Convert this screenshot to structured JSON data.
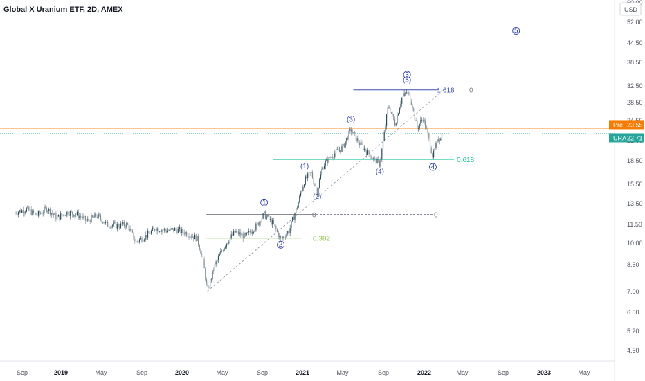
{
  "title": "Global X Uranium ETF, 2D, AMEX",
  "corner_label": "USD",
  "chart_data": {
    "type": "candlestick",
    "title": "Global X Uranium ETF, 2D, AMEX",
    "y_scale": "log",
    "y_ticks": [
      "60.00",
      "52.00",
      "44.50",
      "38.50",
      "32.50",
      "28.50",
      "24.50",
      "21.50",
      "18.50",
      "15.50",
      "13.50",
      "11.50",
      "10.00",
      "8.50",
      "7.00",
      "6.00",
      "5.20",
      "4.50"
    ],
    "x_ticks": [
      {
        "label": "Sep",
        "bold": false
      },
      {
        "label": "2019",
        "bold": true
      },
      {
        "label": "May",
        "bold": false
      },
      {
        "label": "Sep",
        "bold": false
      },
      {
        "label": "2020",
        "bold": true
      },
      {
        "label": "May",
        "bold": false
      },
      {
        "label": "Sep",
        "bold": false
      },
      {
        "label": "2021",
        "bold": true
      },
      {
        "label": "May",
        "bold": false
      },
      {
        "label": "Sep",
        "bold": false
      },
      {
        "label": "2022",
        "bold": true
      },
      {
        "label": "May",
        "bold": false
      },
      {
        "label": "Sep",
        "bold": false
      },
      {
        "label": "2023",
        "bold": true
      },
      {
        "label": "May",
        "bold": false
      }
    ],
    "price_path": [
      [
        "2018-08-15",
        12.6
      ],
      [
        "2018-09-20",
        12.9
      ],
      [
        "2018-10-20",
        12.3
      ],
      [
        "2018-11-20",
        13.0
      ],
      [
        "2018-12-20",
        12.1
      ],
      [
        "2019-01-20",
        12.6
      ],
      [
        "2019-02-20",
        12.4
      ],
      [
        "2019-03-20",
        11.8
      ],
      [
        "2019-04-20",
        12.3
      ],
      [
        "2019-05-20",
        11.5
      ],
      [
        "2019-06-20",
        11.4
      ],
      [
        "2019-07-20",
        11.5
      ],
      [
        "2019-08-15",
        10.1
      ],
      [
        "2019-09-15",
        10.6
      ],
      [
        "2019-10-15",
        11.2
      ],
      [
        "2019-11-15",
        11.0
      ],
      [
        "2019-12-15",
        11.1
      ],
      [
        "2020-01-15",
        10.8
      ],
      [
        "2020-02-15",
        10.4
      ],
      [
        "2020-03-01",
        9.2
      ],
      [
        "2020-03-18",
        7.0
      ],
      [
        "2020-04-10",
        8.5
      ],
      [
        "2020-05-10",
        9.9
      ],
      [
        "2020-06-10",
        10.9
      ],
      [
        "2020-07-10",
        10.5
      ],
      [
        "2020-08-10",
        11.3
      ],
      [
        "2020-09-05",
        12.4
      ],
      [
        "2020-10-01",
        11.6
      ],
      [
        "2020-10-25",
        10.3
      ],
      [
        "2020-11-20",
        11.0
      ],
      [
        "2020-12-15",
        13.3
      ],
      [
        "2021-01-05",
        16.0
      ],
      [
        "2021-01-25",
        16.9
      ],
      [
        "2021-02-12",
        14.6
      ],
      [
        "2021-03-01",
        17.8
      ],
      [
        "2021-04-01",
        19.4
      ],
      [
        "2021-05-01",
        20.5
      ],
      [
        "2021-05-25",
        23.3
      ],
      [
        "2021-06-20",
        21.0
      ],
      [
        "2021-07-20",
        19.3
      ],
      [
        "2021-08-20",
        18.0
      ],
      [
        "2021-09-01",
        22.0
      ],
      [
        "2021-09-15",
        28.0
      ],
      [
        "2021-10-05",
        24.3
      ],
      [
        "2021-10-25",
        29.5
      ],
      [
        "2021-11-10",
        30.9
      ],
      [
        "2021-11-25",
        28.4
      ],
      [
        "2021-12-10",
        23.5
      ],
      [
        "2021-12-28",
        25.5
      ],
      [
        "2022-01-10",
        22.8
      ],
      [
        "2022-01-27",
        19.0
      ],
      [
        "2022-02-10",
        21.5
      ],
      [
        "2022-02-25",
        22.71
      ]
    ],
    "price_badges": [
      {
        "label": "Pre",
        "value": "23.55",
        "color": "#f57c00",
        "price": 23.55
      },
      {
        "label": "URA",
        "value": "22.71",
        "color": "#26a69a",
        "price": 22.71
      }
    ],
    "fib_levels": [
      {
        "label": "1.618",
        "value": 31.4,
        "start": "2021-06-01",
        "end": "2022-02-15",
        "color": "#3f51b5"
      },
      {
        "label": "0",
        "value": 31.4,
        "color": "#787b86"
      },
      {
        "label": "0.618",
        "value": 18.7,
        "start": "2020-10-01",
        "end": "2022-04-01",
        "color": "#26c6a0"
      },
      {
        "label": "0",
        "value": 12.4,
        "start": "2020-03-15",
        "end": "2022-02-01",
        "color": "#787b86"
      },
      {
        "label": "0",
        "value": 12.4,
        "color": "#787b86"
      },
      {
        "label": "0.382",
        "value": 10.4,
        "start": "2020-03-15",
        "end": "2020-12-25",
        "color": "#8bc34a"
      }
    ],
    "trend_lines": [
      {
        "from": [
          "2020-03-18",
          7.0
        ],
        "to": [
          "2020-12-15",
          12.4
        ],
        "style": "dashed"
      },
      {
        "from": [
          "2020-03-18",
          7.0
        ],
        "to": [
          "2022-03-01",
          31.4
        ],
        "style": "dashed"
      }
    ],
    "wave_labels": [
      {
        "text": "1",
        "date": "2020-09-05",
        "price": 13.35,
        "circled": true
      },
      {
        "text": "2",
        "date": "2020-10-25",
        "price": 9.75,
        "circled": true
      },
      {
        "text": "(1)",
        "date": "2021-01-05",
        "price": 17.5,
        "circled": false
      },
      {
        "text": "(2)",
        "date": "2021-02-12",
        "price": 13.95,
        "circled": false
      },
      {
        "text": "(3)",
        "date": "2021-05-25",
        "price": 24.8,
        "circled": false
      },
      {
        "text": "(4)",
        "date": "2021-08-20",
        "price": 16.8,
        "circled": false
      },
      {
        "text": "3",
        "date": "2021-11-10",
        "price": 34.6,
        "circled": true
      },
      {
        "text": "(5)",
        "date": "2021-11-10",
        "price": 33.3,
        "circled": false
      },
      {
        "text": "4",
        "date": "2022-01-27",
        "price": 17.4,
        "circled": true
      },
      {
        "text": "5",
        "date": "2022-10-05",
        "price": 48.0,
        "circled": true
      }
    ]
  }
}
